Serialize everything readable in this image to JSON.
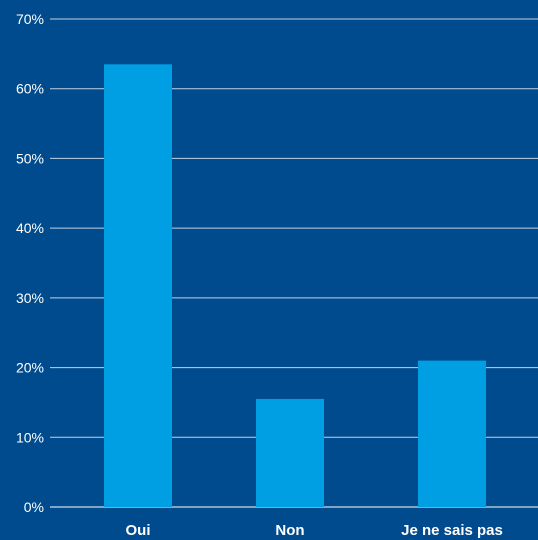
{
  "chart_data": {
    "type": "bar",
    "categories": [
      "Oui",
      "Non",
      "Je ne sais pas"
    ],
    "values": [
      63.5,
      15.5,
      21.0
    ],
    "ylim": [
      0,
      70
    ],
    "yticks": [
      0,
      10,
      20,
      30,
      40,
      50,
      60,
      70
    ],
    "ytick_labels": [
      "0%",
      "10%",
      "20%",
      "30%",
      "40%",
      "50%",
      "60%",
      "70%"
    ],
    "grid": true,
    "colors": {
      "background": "#004b8d",
      "bar": "#009fe3",
      "text": "#ffffff",
      "grid": "#ffffff"
    }
  }
}
